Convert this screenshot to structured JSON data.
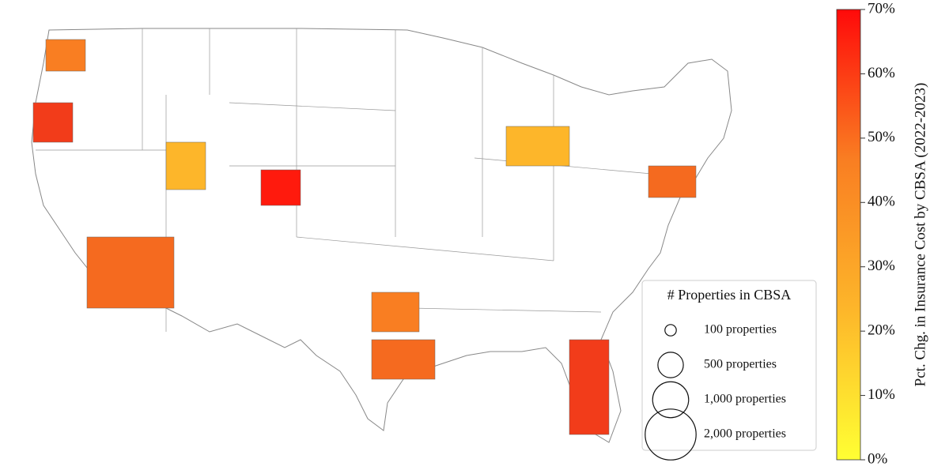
{
  "map": {
    "legend": {
      "title": "# Properties in CBSA",
      "sizes": [
        {
          "value": 100,
          "label": "100 properties"
        },
        {
          "value": 500,
          "label": "500 properties"
        },
        {
          "value": 1000,
          "label": "1,000 properties"
        },
        {
          "value": 2000,
          "label": "2,000 properties"
        }
      ]
    },
    "colorbar": {
      "label": "Pct. Chg. in Insurance Cost by CBSA (2022-2023)",
      "lim": [
        0,
        70
      ],
      "ticks": [
        {
          "value": 0,
          "label": "0%"
        },
        {
          "value": 10,
          "label": "10%"
        },
        {
          "value": 20,
          "label": "20%"
        },
        {
          "value": 30,
          "label": "30%"
        },
        {
          "value": 40,
          "label": "40%"
        },
        {
          "value": 50,
          "label": "50%"
        },
        {
          "value": 60,
          "label": "60%"
        },
        {
          "value": 70,
          "label": "70%"
        }
      ],
      "colors": [
        "#ffff33",
        "#fdb62a",
        "#f97e22",
        "#ff0a0a"
      ]
    }
  }
}
